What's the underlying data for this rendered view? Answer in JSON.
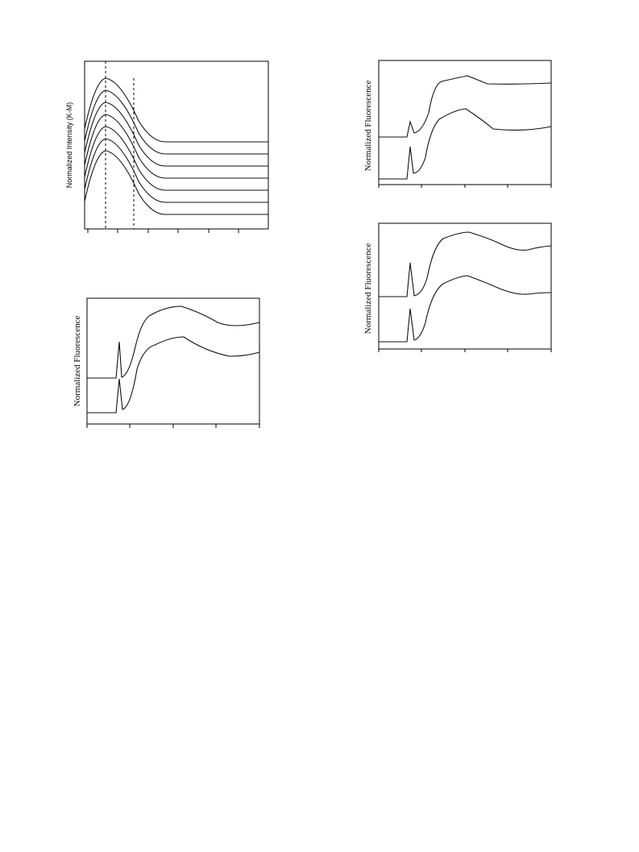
{
  "figures": [
    {
      "y_label": "Normalized Intensity (K-M)"
    },
    {
      "y_label": "Normalized Fluorescence"
    },
    {
      "y_label": "Normalized Fluorescence"
    },
    {
      "y_label": "Normalized Fluorescence"
    }
  ]
}
